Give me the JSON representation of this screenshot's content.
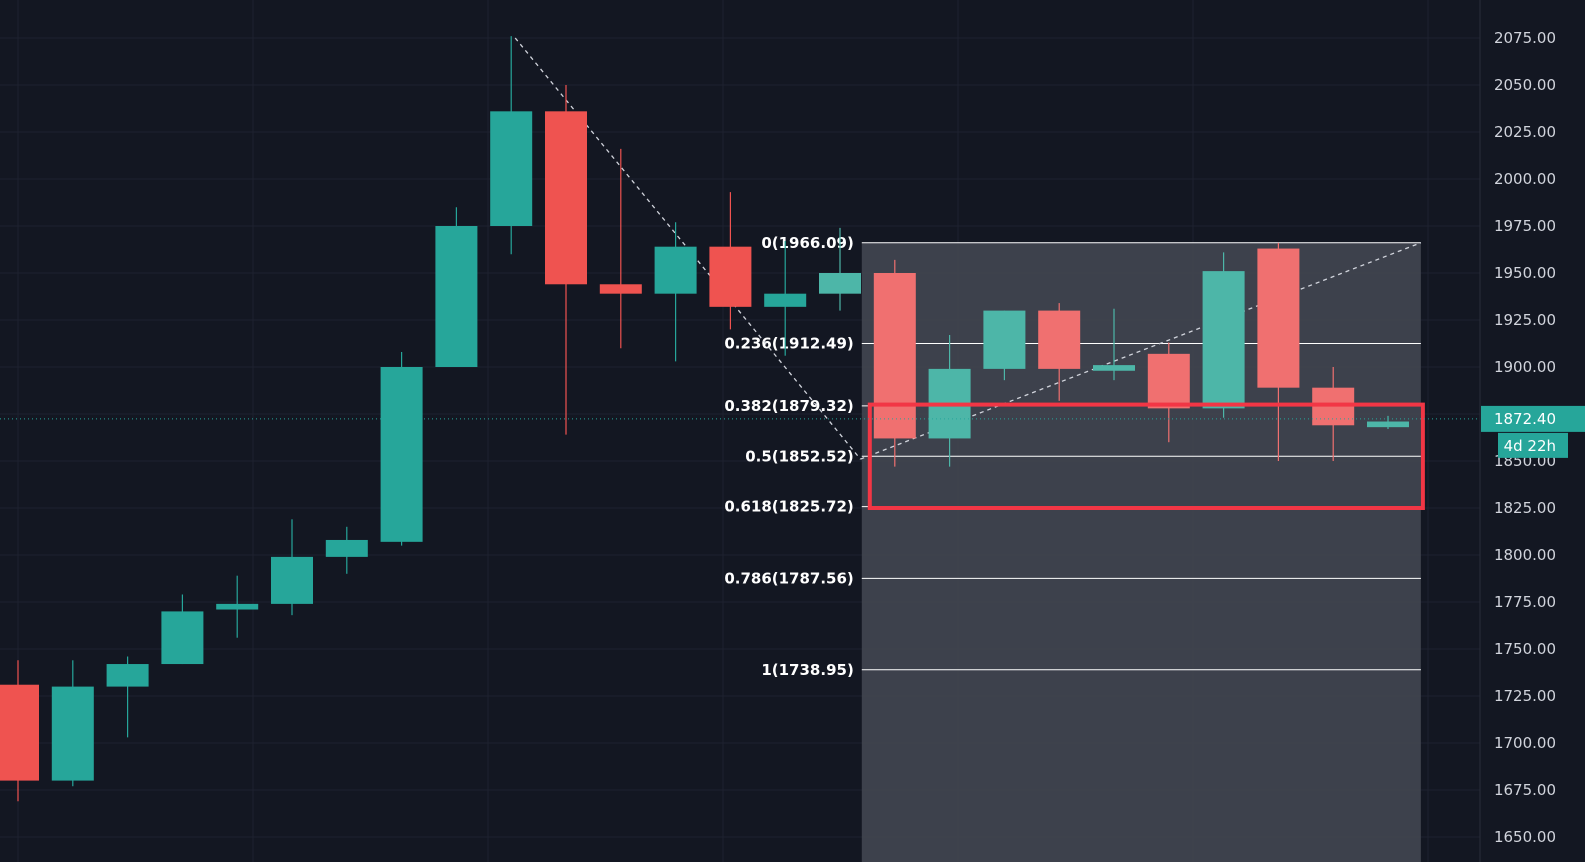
{
  "chart_data": {
    "type": "candlestick",
    "colors": {
      "background": "#131722",
      "grid": "#1e2230",
      "up": "#26a69a",
      "down": "#ef5350",
      "up_faded": "#4db6a8",
      "down_faded": "#f07070",
      "fib_zone": "#434651",
      "highlight_box": "#f23645",
      "last_price_badge": "#26a69a"
    },
    "y_axis": {
      "min": 1650,
      "max": 2075,
      "ticks": [
        "2075.00",
        "2050.00",
        "2025.00",
        "2000.00",
        "1975.00",
        "1950.00",
        "1925.00",
        "1900.00",
        "1875.00",
        "1850.00",
        "1825.00",
        "1800.00",
        "1775.00",
        "1750.00",
        "1725.00",
        "1700.00",
        "1675.00",
        "1650.00"
      ]
    },
    "candles": [
      {
        "open": 1731,
        "high": 1744,
        "low": 1669,
        "close": 1680
      },
      {
        "open": 1680,
        "high": 1744,
        "low": 1677,
        "close": 1730
      },
      {
        "open": 1730,
        "high": 1746,
        "low": 1703,
        "close": 1742
      },
      {
        "open": 1742,
        "high": 1779,
        "low": 1742,
        "close": 1770
      },
      {
        "open": 1771,
        "high": 1789,
        "low": 1756,
        "close": 1774
      },
      {
        "open": 1774,
        "high": 1819,
        "low": 1768,
        "close": 1799
      },
      {
        "open": 1799,
        "high": 1815,
        "low": 1790,
        "close": 1808
      },
      {
        "open": 1807,
        "high": 1908,
        "low": 1805,
        "close": 1900
      },
      {
        "open": 1900,
        "high": 1985,
        "low": 1900,
        "close": 1975
      },
      {
        "open": 1975,
        "high": 2076,
        "low": 1960,
        "close": 2036
      },
      {
        "open": 2036,
        "high": 2050,
        "low": 1864,
        "close": 1944
      },
      {
        "open": 1944,
        "high": 2016,
        "low": 1910,
        "close": 1939
      },
      {
        "open": 1939,
        "high": 1977,
        "low": 1903,
        "close": 1964
      },
      {
        "open": 1964,
        "high": 1993,
        "low": 1920,
        "close": 1932
      },
      {
        "open": 1932,
        "high": 1967,
        "low": 1906,
        "close": 1939
      },
      {
        "open": 1939,
        "high": 1974,
        "low": 1930,
        "close": 1950
      },
      {
        "open": 1950,
        "high": 1957,
        "low": 1847,
        "close": 1862
      },
      {
        "open": 1862,
        "high": 1917,
        "low": 1847,
        "close": 1899
      },
      {
        "open": 1899,
        "high": 1930,
        "low": 1893,
        "close": 1930
      },
      {
        "open": 1930,
        "high": 1934,
        "low": 1882,
        "close": 1899
      },
      {
        "open": 1898,
        "high": 1931,
        "low": 1893,
        "close": 1901
      },
      {
        "open": 1907,
        "high": 1913,
        "low": 1860,
        "close": 1878
      },
      {
        "open": 1878,
        "high": 1961,
        "low": 1873,
        "close": 1951
      },
      {
        "open": 1963,
        "high": 1966,
        "low": 1850,
        "close": 1889
      },
      {
        "open": 1889,
        "high": 1900,
        "low": 1850,
        "close": 1869
      },
      {
        "open": 1868,
        "high": 1874,
        "low": 1867,
        "close": 1871
      }
    ],
    "fib_levels": [
      {
        "label": "0(1966.09)",
        "value": 1966.09
      },
      {
        "label": "0.236(1912.49)",
        "value": 1912.49
      },
      {
        "label": "0.382(1879.32)",
        "value": 1879.32
      },
      {
        "label": "0.5(1852.52)",
        "value": 1852.52
      },
      {
        "label": "0.618(1825.72)",
        "value": 1825.72
      },
      {
        "label": "0.786(1787.56)",
        "value": 1787.56
      },
      {
        "label": "1(1738.95)",
        "value": 1738.95
      }
    ],
    "fib_zone": {
      "start_candle": 16,
      "end_candle": 25.6,
      "top": 1966.09,
      "bottom": 1650
    },
    "trendline_down": {
      "from": {
        "candle": 9,
        "value": 2075
      },
      "to": {
        "candle": 15.3,
        "value": 1851
      }
    },
    "trendline_up": {
      "from": {
        "candle": 15.3,
        "value": 1851
      },
      "to": {
        "candle": 25.6,
        "value": 1966.09
      }
    },
    "highlight_box": {
      "start_candle": 15.4,
      "end_candle": 25.6,
      "top": 1880,
      "bottom": 1825
    },
    "last_price": {
      "value": 1872.4,
      "label": "1872.40",
      "countdown": "4d 22h"
    }
  }
}
